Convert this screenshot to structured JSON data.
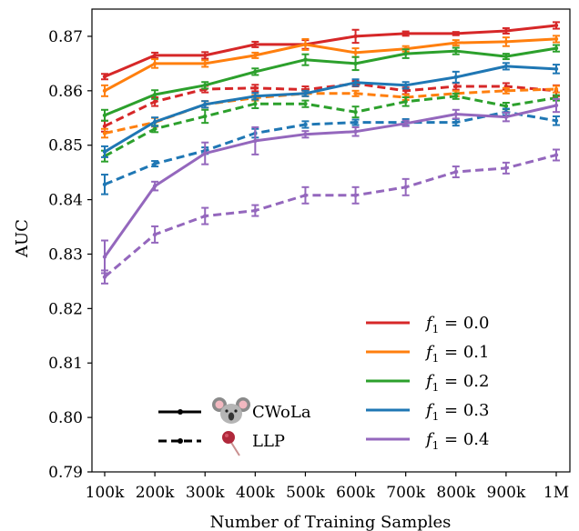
{
  "chart_data": {
    "type": "line",
    "title": "",
    "xlabel": "Number of Training Samples",
    "ylabel": "AUC",
    "categories": [
      "100k",
      "200k",
      "300k",
      "400k",
      "500k",
      "600k",
      "700k",
      "800k",
      "900k",
      "1M"
    ],
    "ylim": [
      0.79,
      0.875
    ],
    "yticks": [
      "0.79",
      "0.80",
      "0.81",
      "0.82",
      "0.83",
      "0.84",
      "0.85",
      "0.86",
      "0.87"
    ],
    "grid": false,
    "legend_position": "bottom-right",
    "series": [
      {
        "name": "f1 = 0.0",
        "method": "CWoLa",
        "color": "#d62728",
        "values": [
          0.8626,
          0.8665,
          0.8665,
          0.8685,
          0.8685,
          0.87,
          0.8705,
          0.8705,
          0.871,
          0.872
        ],
        "errors": [
          0.0005,
          0.0005,
          0.0006,
          0.0005,
          0.0008,
          0.0012,
          0.0004,
          0.0003,
          0.0005,
          0.0006
        ]
      },
      {
        "name": "f1 = 0.0",
        "method": "LLP",
        "color": "#d62728",
        "values": [
          0.8535,
          0.858,
          0.8603,
          0.8605,
          0.8602,
          0.8613,
          0.86,
          0.8608,
          0.8608,
          0.86
        ],
        "errors": [
          0.001,
          0.0008,
          0.0006,
          0.0006,
          0.0006,
          0.0005,
          0.0006,
          0.0006,
          0.0006,
          0.001
        ]
      },
      {
        "name": "f1 = 0.1",
        "method": "CWoLa",
        "color": "#ff7f0e",
        "values": [
          0.86,
          0.865,
          0.865,
          0.8665,
          0.8685,
          0.867,
          0.8677,
          0.8688,
          0.869,
          0.8695
        ],
        "errors": [
          0.001,
          0.0008,
          0.0006,
          0.0005,
          0.001,
          0.0008,
          0.0005,
          0.0005,
          0.0008,
          0.0006
        ]
      },
      {
        "name": "f1 = 0.1",
        "method": "LLP",
        "color": "#ff7f0e",
        "values": [
          0.8522,
          0.8542,
          0.8575,
          0.8587,
          0.8595,
          0.8595,
          0.8588,
          0.8595,
          0.86,
          0.8603
        ],
        "errors": [
          0.0008,
          0.0008,
          0.0006,
          0.0005,
          0.0005,
          0.0005,
          0.0005,
          0.0005,
          0.0005,
          0.0006
        ]
      },
      {
        "name": "f1 = 0.2",
        "method": "CWoLa",
        "color": "#2ca02c",
        "values": [
          0.8555,
          0.8593,
          0.861,
          0.8635,
          0.8657,
          0.865,
          0.8668,
          0.8673,
          0.8663,
          0.8678
        ],
        "errors": [
          0.001,
          0.0008,
          0.0006,
          0.0006,
          0.001,
          0.0012,
          0.0008,
          0.0006,
          0.0005,
          0.0006
        ]
      },
      {
        "name": "f1 = 0.2",
        "method": "LLP",
        "color": "#2ca02c",
        "values": [
          0.848,
          0.853,
          0.8553,
          0.8576,
          0.8576,
          0.8561,
          0.858,
          0.859,
          0.8572,
          0.8587
        ],
        "errors": [
          0.001,
          0.0006,
          0.0012,
          0.0008,
          0.0006,
          0.001,
          0.0008,
          0.0005,
          0.0006,
          0.0005
        ]
      },
      {
        "name": "f1 = 0.3",
        "method": "CWoLa",
        "color": "#1f77b4",
        "values": [
          0.8488,
          0.8543,
          0.8575,
          0.859,
          0.8595,
          0.8615,
          0.861,
          0.8625,
          0.8645,
          0.864
        ],
        "errors": [
          0.001,
          0.0008,
          0.0006,
          0.0006,
          0.0005,
          0.0006,
          0.0006,
          0.001,
          0.0006,
          0.0008
        ]
      },
      {
        "name": "f1 = 0.3",
        "method": "LLP",
        "color": "#1f77b4",
        "values": [
          0.8428,
          0.8466,
          0.849,
          0.8522,
          0.8538,
          0.8542,
          0.8542,
          0.8542,
          0.8561,
          0.8545
        ],
        "errors": [
          0.0018,
          0.0005,
          0.0006,
          0.0008,
          0.0006,
          0.0005,
          0.0006,
          0.0006,
          0.0006,
          0.0008
        ]
      },
      {
        "name": "f1 = 0.4",
        "method": "CWoLa",
        "color": "#9467bd",
        "values": [
          0.8295,
          0.8425,
          0.8485,
          0.8508,
          0.852,
          0.8525,
          0.854,
          0.8557,
          0.8552,
          0.8573
        ],
        "errors": [
          0.003,
          0.0008,
          0.002,
          0.0025,
          0.0006,
          0.0008,
          0.0005,
          0.0008,
          0.0008,
          0.0012
        ]
      },
      {
        "name": "f1 = 0.4",
        "method": "LLP",
        "color": "#9467bd",
        "values": [
          0.8258,
          0.8336,
          0.837,
          0.838,
          0.8408,
          0.8408,
          0.8423,
          0.8451,
          0.8458,
          0.8482
        ],
        "errors": [
          0.0012,
          0.0015,
          0.0015,
          0.001,
          0.0015,
          0.0015,
          0.0015,
          0.001,
          0.001,
          0.001
        ]
      }
    ],
    "legend_colors": [
      {
        "label_prefix": "f",
        "label_sub": "1",
        "label_suffix": " = 0.0",
        "color": "#d62728"
      },
      {
        "label_prefix": "f",
        "label_sub": "1",
        "label_suffix": " = 0.1",
        "color": "#ff7f0e"
      },
      {
        "label_prefix": "f",
        "label_sub": "1",
        "label_suffix": " = 0.2",
        "color": "#2ca02c"
      },
      {
        "label_prefix": "f",
        "label_sub": "1",
        "label_suffix": " = 0.3",
        "color": "#1f77b4"
      },
      {
        "label_prefix": "f",
        "label_sub": "1",
        "label_suffix": " = 0.4",
        "color": "#9467bd"
      }
    ],
    "legend_methods": [
      {
        "label": "CWoLa",
        "line_style": "solid",
        "icon": "koala-icon"
      },
      {
        "label": "LLP",
        "line_style": "dashed",
        "icon": "lollipop-icon"
      }
    ]
  }
}
